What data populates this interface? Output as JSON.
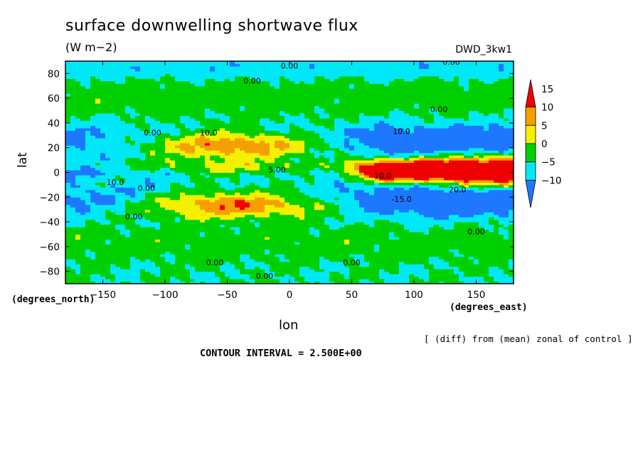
{
  "chart_data": {
    "type": "heatmap",
    "title": "surface downwelling shortwave flux",
    "units": "(W m−2)",
    "run_label": "DWD_3kw1",
    "xlabel": "lon",
    "ylabel": "lat",
    "x_units_note": "(degrees_east)",
    "y_units_note": "(degrees_north)",
    "diff_note": "[ (diff) from (mean) zonal of control ]",
    "contour_interval_text": "CONTOUR INTERVAL = 2.500E+00",
    "xlim": [
      -180,
      180
    ],
    "ylim": [
      -90,
      90
    ],
    "x_ticks": [
      -150,
      -100,
      -50,
      0,
      50,
      100,
      150
    ],
    "y_ticks": [
      80,
      60,
      40,
      20,
      0,
      -20,
      -40,
      -60,
      -80
    ],
    "colorbar": {
      "ticks": [
        15,
        10,
        5,
        0,
        -5,
        -10
      ],
      "levels": [
        {
          "min": 15,
          "color": "#ee0000"
        },
        {
          "min": 10,
          "color": "#f5a000"
        },
        {
          "min": 5,
          "color": "#f5f000"
        },
        {
          "min": 0,
          "color": "#00d000"
        },
        {
          "min": -5,
          "color": "#00e8f8"
        },
        {
          "min": -10,
          "color": "#1e78ff"
        }
      ]
    },
    "contour_labels": [
      {
        "text": "0.00",
        "lon": 0,
        "lat": 84
      },
      {
        "text": "0.00",
        "lon": -30,
        "lat": 72
      },
      {
        "text": "0.00",
        "lon": 130,
        "lat": 87
      },
      {
        "text": "0.00",
        "lon": 120,
        "lat": 49
      },
      {
        "text": "0.00",
        "lon": -110,
        "lat": 30
      },
      {
        "text": "10.0",
        "lon": -65,
        "lat": 30
      },
      {
        "text": "10.0",
        "lon": -140,
        "lat": -10
      },
      {
        "text": "0.00",
        "lon": -115,
        "lat": -15
      },
      {
        "text": "5.00",
        "lon": -10,
        "lat": 0
      },
      {
        "text": "10.0",
        "lon": 75,
        "lat": -5
      },
      {
        "text": "-15.0",
        "lon": 90,
        "lat": -24
      },
      {
        "text": "20.0",
        "lon": 135,
        "lat": -16
      },
      {
        "text": "10.0",
        "lon": 90,
        "lat": 31
      },
      {
        "text": "0.00",
        "lon": -125,
        "lat": -38
      },
      {
        "text": "0.00",
        "lon": 150,
        "lat": -50
      },
      {
        "text": "0.00",
        "lon": -60,
        "lat": -75
      },
      {
        "text": "0.00",
        "lon": 50,
        "lat": -75
      },
      {
        "text": "0.00",
        "lon": -20,
        "lat": -86
      }
    ],
    "field_features": [
      {
        "desc": "NH subtropical positive band",
        "lon_range": [
          -120,
          40
        ],
        "lat_center": 22,
        "max_value": 15
      },
      {
        "desc": "SH subtropical positive band",
        "lon_range": [
          -120,
          40
        ],
        "lat_center": -25,
        "max_value": 15
      },
      {
        "desc": "equatorial strong positive tongue",
        "lon_range": [
          40,
          180
        ],
        "lat_center": 2,
        "max_value": 15
      },
      {
        "desc": "NH tropical negative band",
        "lon_range": [
          -180,
          180
        ],
        "lat_center": 25,
        "min_value": -10
      },
      {
        "desc": "SH tropical negative band",
        "lon_range": [
          -180,
          180
        ],
        "lat_center": -22,
        "min_value": -10
      },
      {
        "desc": "mid/high-latitude near-zero field",
        "lat_range": [
          -90,
          90
        ],
        "values": [
          -5,
          5
        ]
      }
    ]
  }
}
